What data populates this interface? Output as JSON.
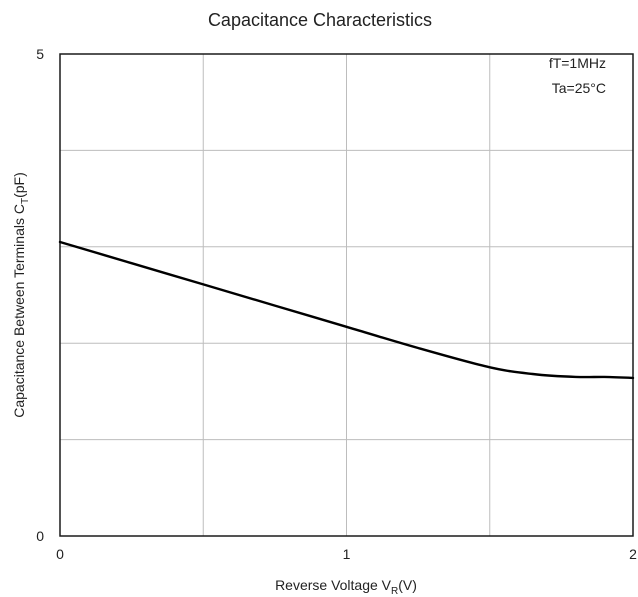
{
  "chart_data": {
    "type": "line",
    "title": "Capacitance Characteristics",
    "xlabel": {
      "main": "Reverse Voltage V",
      "sub": "R",
      "tail": "(V)"
    },
    "ylabel": {
      "main": "Capacitance Between Terminals C",
      "sub": "T",
      "tail": "(pF)"
    },
    "xlim": [
      0,
      2
    ],
    "ylim": [
      0,
      5
    ],
    "x_ticks_labeled": [
      0,
      1,
      2
    ],
    "y_ticks_labeled": [
      0,
      5
    ],
    "x_grid": [
      0.5,
      1,
      1.5
    ],
    "y_grid": [
      1,
      2,
      3,
      4
    ],
    "grid": true,
    "annotations": [
      "fT=1MHz",
      "Ta=25°C"
    ],
    "series": [
      {
        "x": [
          0,
          0.25,
          0.5,
          0.75,
          1.0,
          1.25,
          1.5,
          1.65,
          1.8,
          1.9,
          2.0
        ],
        "y": [
          3.05,
          2.83,
          2.61,
          2.39,
          2.17,
          1.95,
          1.75,
          1.68,
          1.65,
          1.65,
          1.64
        ]
      }
    ]
  }
}
